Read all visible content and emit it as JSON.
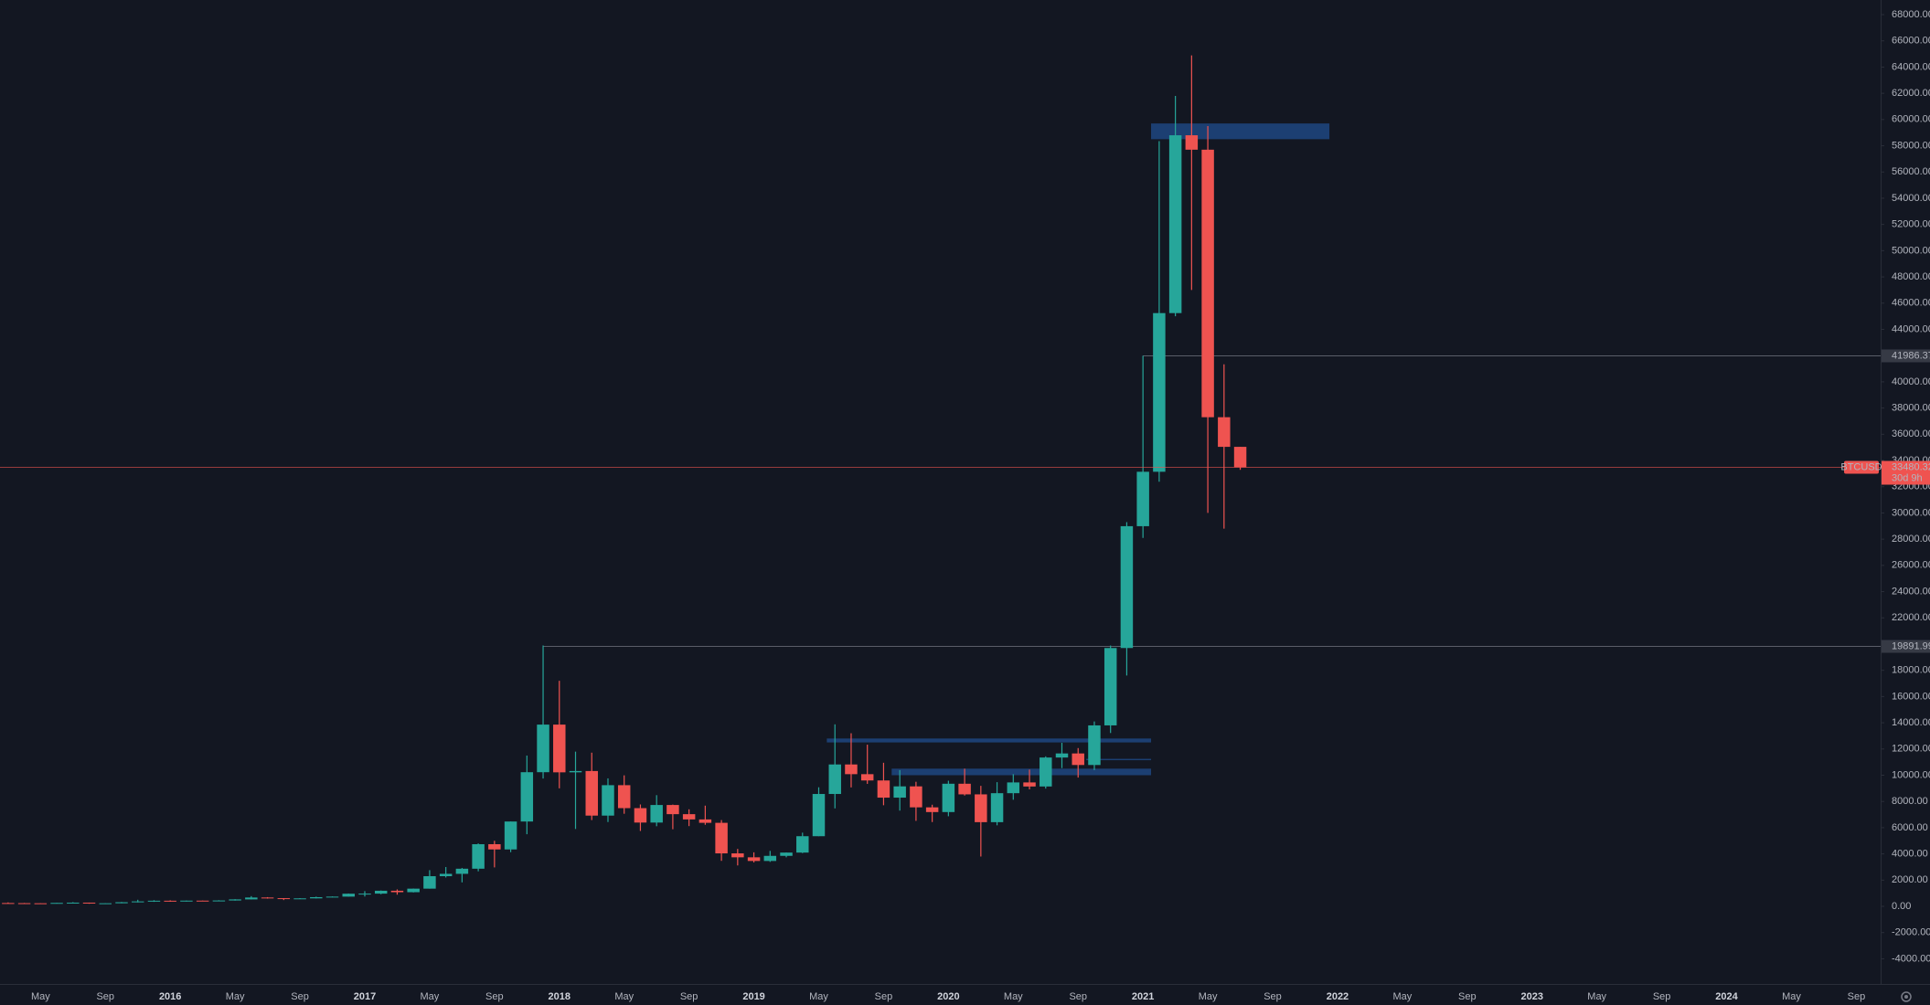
{
  "chart_data": {
    "type": "candlestick",
    "symbol": "BTCUSD",
    "x": [
      "2015-03",
      "2015-04",
      "2015-05",
      "2015-06",
      "2015-07",
      "2015-08",
      "2015-09",
      "2015-10",
      "2015-11",
      "2015-12",
      "2016-01",
      "2016-02",
      "2016-03",
      "2016-04",
      "2016-05",
      "2016-06",
      "2016-07",
      "2016-08",
      "2016-09",
      "2016-10",
      "2016-11",
      "2016-12",
      "2017-01",
      "2017-02",
      "2017-03",
      "2017-04",
      "2017-05",
      "2017-06",
      "2017-07",
      "2017-08",
      "2017-09",
      "2017-10",
      "2017-11",
      "2017-12",
      "2018-01",
      "2018-02",
      "2018-03",
      "2018-04",
      "2018-05",
      "2018-06",
      "2018-07",
      "2018-08",
      "2018-09",
      "2018-10",
      "2018-11",
      "2018-12",
      "2019-01",
      "2019-02",
      "2019-03",
      "2019-04",
      "2019-05",
      "2019-06",
      "2019-07",
      "2019-08",
      "2019-09",
      "2019-10",
      "2019-11",
      "2019-12",
      "2020-01",
      "2020-02",
      "2020-03",
      "2020-04",
      "2020-05",
      "2020-06",
      "2020-07",
      "2020-08",
      "2020-09",
      "2020-10",
      "2020-11",
      "2020-12",
      "2021-01",
      "2021-02",
      "2021-03",
      "2021-04",
      "2021-05",
      "2021-06",
      "2021-07"
    ],
    "open": [
      254,
      244,
      236,
      230,
      263,
      284,
      230,
      236,
      314,
      377,
      430,
      368,
      437,
      416,
      448,
      531,
      674,
      624,
      573,
      609,
      700,
      742,
      963,
      970,
      1190,
      1080,
      1350,
      2300,
      2480,
      2870,
      4740,
      4340,
      6470,
      10230,
      13860,
      10220,
      10320,
      6920,
      9240,
      7490,
      6390,
      7730,
      7030,
      6630,
      6370,
      4040,
      3740,
      3460,
      3850,
      4100,
      5350,
      8570,
      10820,
      10080,
      9600,
      8290,
      9150,
      7550,
      7190,
      9350,
      8540,
      6420,
      8630,
      9450,
      9140,
      11350,
      11660,
      10780,
      13800,
      19700,
      28990,
      33140,
      45240,
      58800,
      57700,
      37300,
      35040
    ],
    "high": [
      300,
      261,
      247,
      267,
      318,
      285,
      243,
      334,
      502,
      469,
      460,
      440,
      439,
      467,
      549,
      780,
      703,
      626,
      628,
      740,
      756,
      980,
      1160,
      1210,
      1290,
      1360,
      2760,
      3000,
      2930,
      4800,
      5000,
      6470,
      11500,
      19891.99,
      17200,
      11800,
      11720,
      9760,
      9990,
      7770,
      8480,
      7760,
      7400,
      7680,
      6580,
      4380,
      4120,
      4230,
      4110,
      5620,
      9080,
      13880,
      13200,
      12330,
      10950,
      10390,
      9500,
      7750,
      9580,
      10500,
      9190,
      9470,
      10080,
      10430,
      11440,
      12470,
      12070,
      14100,
      19890,
      29300,
      41986.37,
      58350,
      61800,
      64895,
      59500,
      41330,
      35040
    ],
    "low": [
      240,
      214,
      225,
      221,
      253,
      199,
      224,
      236,
      300,
      343,
      354,
      366,
      394,
      412,
      436,
      525,
      590,
      480,
      570,
      604,
      690,
      740,
      750,
      924,
      890,
      1060,
      1350,
      2200,
      1830,
      2670,
      2970,
      4130,
      5500,
      9750,
      9000,
      5900,
      6580,
      6430,
      7060,
      5750,
      6110,
      5880,
      6120,
      6220,
      3470,
      3120,
      3350,
      3390,
      3740,
      4060,
      5350,
      7470,
      9070,
      9340,
      7710,
      7300,
      6520,
      6430,
      6870,
      8450,
      3800,
      6180,
      8130,
      8920,
      8980,
      10540,
      9820,
      10390,
      13220,
      17600,
      28100,
      32380,
      45000,
      47000,
      30000,
      28800,
      33290
    ],
    "close": [
      244,
      236,
      230,
      263,
      284,
      230,
      236,
      314,
      377,
      430,
      368,
      437,
      416,
      448,
      531,
      674,
      624,
      573,
      609,
      700,
      742,
      963,
      970,
      1190,
      1080,
      1350,
      2300,
      2480,
      2870,
      4740,
      4340,
      6470,
      10230,
      13860,
      10220,
      10320,
      6920,
      9240,
      7490,
      6390,
      7730,
      7030,
      6630,
      6370,
      4040,
      3740,
      3460,
      3850,
      4100,
      5350,
      8570,
      10820,
      10080,
      9600,
      8290,
      9150,
      7550,
      7190,
      9350,
      8540,
      6420,
      8630,
      9450,
      9140,
      11350,
      11660,
      10780,
      13800,
      19700,
      28990,
      33140,
      45240,
      58800,
      57700,
      37300,
      35040,
      33480.32
    ],
    "up_color": "#26a69a",
    "down_color": "#ef5350",
    "xlim": [
      "2015-03",
      "2024-10"
    ],
    "xticks": [
      {
        "value": "2015-05",
        "label": "May"
      },
      {
        "value": "2015-09",
        "label": "Sep"
      },
      {
        "value": "2016-01",
        "label": "2016"
      },
      {
        "value": "2016-05",
        "label": "May"
      },
      {
        "value": "2016-09",
        "label": "Sep"
      },
      {
        "value": "2017-01",
        "label": "2017"
      },
      {
        "value": "2017-05",
        "label": "May"
      },
      {
        "value": "2017-09",
        "label": "Sep"
      },
      {
        "value": "2018-01",
        "label": "2018"
      },
      {
        "value": "2018-05",
        "label": "May"
      },
      {
        "value": "2018-09",
        "label": "Sep"
      },
      {
        "value": "2019-01",
        "label": "2019"
      },
      {
        "value": "2019-05",
        "label": "May"
      },
      {
        "value": "2019-09",
        "label": "Sep"
      },
      {
        "value": "2020-01",
        "label": "2020"
      },
      {
        "value": "2020-05",
        "label": "May"
      },
      {
        "value": "2020-09",
        "label": "Sep"
      },
      {
        "value": "2021-01",
        "label": "2021"
      },
      {
        "value": "2021-05",
        "label": "May"
      },
      {
        "value": "2021-09",
        "label": "Sep"
      },
      {
        "value": "2022-01",
        "label": "2022"
      },
      {
        "value": "2022-05",
        "label": "May"
      },
      {
        "value": "2022-09",
        "label": "Sep"
      },
      {
        "value": "2023-01",
        "label": "2023"
      },
      {
        "value": "2023-05",
        "label": "May"
      },
      {
        "value": "2023-09",
        "label": "Sep"
      },
      {
        "value": "2024-01",
        "label": "2024"
      },
      {
        "value": "2024-05",
        "label": "May"
      },
      {
        "value": "2024-09",
        "label": "Sep"
      }
    ],
    "ylim": [
      -5920,
      69115
    ],
    "yticks": [
      {
        "value": -4000,
        "label": "-4000.00"
      },
      {
        "value": -2000,
        "label": "-2000.00"
      },
      {
        "value": 0,
        "label": "0.00"
      },
      {
        "value": 2000,
        "label": "2000.00"
      },
      {
        "value": 4000,
        "label": "4000.00"
      },
      {
        "value": 6000,
        "label": "6000.00"
      },
      {
        "value": 8000,
        "label": "8000.00"
      },
      {
        "value": 10000,
        "label": "10000.00"
      },
      {
        "value": 12000,
        "label": "12000.00"
      },
      {
        "value": 14000,
        "label": "14000.00"
      },
      {
        "value": 16000,
        "label": "16000.00"
      },
      {
        "value": 18000,
        "label": "18000.00"
      },
      {
        "value": 20000,
        "label": "20000.00"
      },
      {
        "value": 22000,
        "label": "22000.00"
      },
      {
        "value": 24000,
        "label": "24000.00"
      },
      {
        "value": 26000,
        "label": "26000.00"
      },
      {
        "value": 28000,
        "label": "28000.00"
      },
      {
        "value": 30000,
        "label": "30000.00"
      },
      {
        "value": 32000,
        "label": "32000.00"
      },
      {
        "value": 34000,
        "label": "34000.00"
      },
      {
        "value": 36000,
        "label": "36000.00"
      },
      {
        "value": 38000,
        "label": "38000.00"
      },
      {
        "value": 40000,
        "label": "40000.00"
      },
      {
        "value": 42000,
        "label": "42000.00"
      },
      {
        "value": 44000,
        "label": "44000.00"
      },
      {
        "value": 46000,
        "label": "46000.00"
      },
      {
        "value": 48000,
        "label": "48000.00"
      },
      {
        "value": 50000,
        "label": "50000.00"
      },
      {
        "value": 52000,
        "label": "52000.00"
      },
      {
        "value": 54000,
        "label": "54000.00"
      },
      {
        "value": 56000,
        "label": "56000.00"
      },
      {
        "value": 58000,
        "label": "58000.00"
      },
      {
        "value": 60000,
        "label": "60000.00"
      },
      {
        "value": 62000,
        "label": "62000.00"
      },
      {
        "value": 64000,
        "label": "64000.00"
      },
      {
        "value": 66000,
        "label": "66000.00"
      },
      {
        "value": 68000,
        "label": "68000.00"
      }
    ],
    "grid": false,
    "last_price": 33480.32,
    "countdown": "30d 9h",
    "levels": [
      {
        "value": 41986.37,
        "from": "2021-01"
      },
      {
        "value": 19891.99,
        "from": "2017-12"
      }
    ],
    "zone_color": "rgba(36,96,180,0.55)",
    "zones": [
      {
        "from": "2021-02",
        "to": "2022-01",
        "low": 58500,
        "high": 59700
      },
      {
        "from": "2019-06",
        "to": "2021-02",
        "low": 12500,
        "high": 12800
      },
      {
        "from": "2019-10",
        "to": "2021-02",
        "low": 10000,
        "high": 10500
      },
      {
        "from": "2020-10",
        "to": "2021-02",
        "low": 11150,
        "high": 11250
      }
    ]
  }
}
